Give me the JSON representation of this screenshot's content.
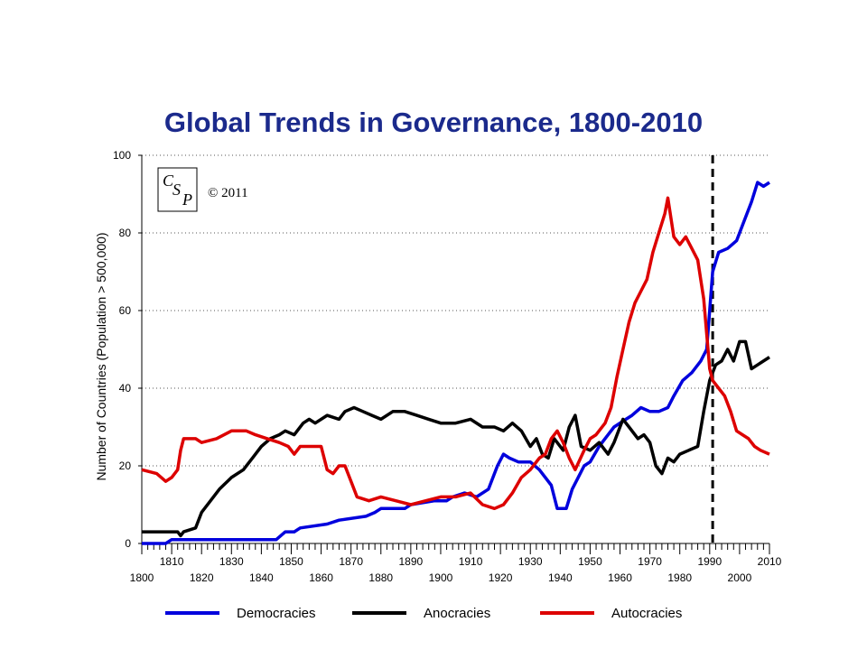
{
  "chart_data": {
    "type": "line",
    "title": "Global Trends in Governance, 1800-2010",
    "ylabel": "Number of Countries (Population > 500,000)",
    "xlabel": "",
    "xlim": [
      1800,
      2010
    ],
    "ylim": [
      0,
      100
    ],
    "x_ticks": [
      1800,
      1810,
      1820,
      1830,
      1840,
      1850,
      1860,
      1870,
      1880,
      1890,
      1900,
      1910,
      1920,
      1930,
      1940,
      1950,
      1960,
      1970,
      1980,
      1990,
      2000,
      2010
    ],
    "y_ticks": [
      0,
      20,
      40,
      60,
      80,
      100
    ],
    "grid": "horizontal dotted",
    "legend_position": "bottom",
    "annotations": {
      "copyright": "© 2011",
      "logo": "CSP",
      "reference_line_year": 1991
    },
    "series": [
      {
        "name": "Democracies",
        "color": "#0000dd",
        "points": [
          [
            1800,
            0
          ],
          [
            1808,
            0
          ],
          [
            1810,
            1
          ],
          [
            1845,
            1
          ],
          [
            1848,
            3
          ],
          [
            1851,
            3
          ],
          [
            1853,
            4
          ],
          [
            1862,
            5
          ],
          [
            1866,
            6
          ],
          [
            1875,
            7
          ],
          [
            1878,
            8
          ],
          [
            1880,
            9
          ],
          [
            1888,
            9
          ],
          [
            1890,
            10
          ],
          [
            1898,
            11
          ],
          [
            1902,
            11
          ],
          [
            1904,
            12
          ],
          [
            1908,
            13
          ],
          [
            1912,
            12
          ],
          [
            1916,
            14
          ],
          [
            1919,
            20
          ],
          [
            1921,
            23
          ],
          [
            1923,
            22
          ],
          [
            1926,
            21
          ],
          [
            1930,
            21
          ],
          [
            1933,
            19
          ],
          [
            1937,
            15
          ],
          [
            1939,
            9
          ],
          [
            1942,
            9
          ],
          [
            1944,
            14
          ],
          [
            1946,
            17
          ],
          [
            1948,
            20
          ],
          [
            1950,
            21
          ],
          [
            1953,
            25
          ],
          [
            1956,
            28
          ],
          [
            1958,
            30
          ],
          [
            1962,
            32
          ],
          [
            1964,
            33
          ],
          [
            1967,
            35
          ],
          [
            1970,
            34
          ],
          [
            1973,
            34
          ],
          [
            1976,
            35
          ],
          [
            1978,
            38
          ],
          [
            1981,
            42
          ],
          [
            1984,
            44
          ],
          [
            1987,
            47
          ],
          [
            1989,
            50
          ],
          [
            1990,
            60
          ],
          [
            1991,
            70
          ],
          [
            1993,
            75
          ],
          [
            1996,
            76
          ],
          [
            1999,
            78
          ],
          [
            2001,
            82
          ],
          [
            2004,
            88
          ],
          [
            2006,
            93
          ],
          [
            2008,
            92
          ],
          [
            2010,
            93
          ]
        ]
      },
      {
        "name": "Anocracies",
        "color": "#000000",
        "points": [
          [
            1800,
            3
          ],
          [
            1812,
            3
          ],
          [
            1813,
            2
          ],
          [
            1814,
            3
          ],
          [
            1818,
            4
          ],
          [
            1820,
            8
          ],
          [
            1823,
            11
          ],
          [
            1826,
            14
          ],
          [
            1830,
            17
          ],
          [
            1834,
            19
          ],
          [
            1837,
            22
          ],
          [
            1840,
            25
          ],
          [
            1843,
            27
          ],
          [
            1846,
            28
          ],
          [
            1848,
            29
          ],
          [
            1851,
            28
          ],
          [
            1854,
            31
          ],
          [
            1856,
            32
          ],
          [
            1858,
            31
          ],
          [
            1862,
            33
          ],
          [
            1866,
            32
          ],
          [
            1868,
            34
          ],
          [
            1871,
            35
          ],
          [
            1874,
            34
          ],
          [
            1877,
            33
          ],
          [
            1880,
            32
          ],
          [
            1884,
            34
          ],
          [
            1888,
            34
          ],
          [
            1892,
            33
          ],
          [
            1896,
            32
          ],
          [
            1900,
            31
          ],
          [
            1905,
            31
          ],
          [
            1910,
            32
          ],
          [
            1914,
            30
          ],
          [
            1918,
            30
          ],
          [
            1921,
            29
          ],
          [
            1924,
            31
          ],
          [
            1927,
            29
          ],
          [
            1930,
            25
          ],
          [
            1932,
            27
          ],
          [
            1934,
            23
          ],
          [
            1936,
            22
          ],
          [
            1938,
            27
          ],
          [
            1941,
            24
          ],
          [
            1943,
            30
          ],
          [
            1945,
            33
          ],
          [
            1947,
            25
          ],
          [
            1950,
            24
          ],
          [
            1953,
            26
          ],
          [
            1956,
            23
          ],
          [
            1958,
            26
          ],
          [
            1961,
            32
          ],
          [
            1963,
            30
          ],
          [
            1966,
            27
          ],
          [
            1968,
            28
          ],
          [
            1970,
            26
          ],
          [
            1972,
            20
          ],
          [
            1974,
            18
          ],
          [
            1976,
            22
          ],
          [
            1978,
            21
          ],
          [
            1980,
            23
          ],
          [
            1983,
            24
          ],
          [
            1986,
            25
          ],
          [
            1988,
            34
          ],
          [
            1990,
            42
          ],
          [
            1992,
            46
          ],
          [
            1994,
            47
          ],
          [
            1996,
            50
          ],
          [
            1998,
            47
          ],
          [
            2000,
            52
          ],
          [
            2002,
            52
          ],
          [
            2004,
            45
          ],
          [
            2006,
            46
          ],
          [
            2008,
            47
          ],
          [
            2010,
            48
          ]
        ]
      },
      {
        "name": "Autocracies",
        "color": "#dd0000",
        "points": [
          [
            1800,
            19
          ],
          [
            1805,
            18
          ],
          [
            1808,
            16
          ],
          [
            1810,
            17
          ],
          [
            1812,
            19
          ],
          [
            1813,
            24
          ],
          [
            1814,
            27
          ],
          [
            1818,
            27
          ],
          [
            1820,
            26
          ],
          [
            1825,
            27
          ],
          [
            1830,
            29
          ],
          [
            1835,
            29
          ],
          [
            1838,
            28
          ],
          [
            1842,
            27
          ],
          [
            1846,
            26
          ],
          [
            1849,
            25
          ],
          [
            1851,
            23
          ],
          [
            1853,
            25
          ],
          [
            1856,
            25
          ],
          [
            1860,
            25
          ],
          [
            1862,
            19
          ],
          [
            1864,
            18
          ],
          [
            1866,
            20
          ],
          [
            1868,
            20
          ],
          [
            1870,
            16
          ],
          [
            1872,
            12
          ],
          [
            1876,
            11
          ],
          [
            1880,
            12
          ],
          [
            1885,
            11
          ],
          [
            1890,
            10
          ],
          [
            1895,
            11
          ],
          [
            1900,
            12
          ],
          [
            1905,
            12
          ],
          [
            1910,
            13
          ],
          [
            1914,
            10
          ],
          [
            1918,
            9
          ],
          [
            1921,
            10
          ],
          [
            1924,
            13
          ],
          [
            1927,
            17
          ],
          [
            1930,
            19
          ],
          [
            1933,
            22
          ],
          [
            1935,
            23
          ],
          [
            1937,
            27
          ],
          [
            1939,
            29
          ],
          [
            1941,
            26
          ],
          [
            1943,
            22
          ],
          [
            1945,
            19
          ],
          [
            1948,
            24
          ],
          [
            1950,
            27
          ],
          [
            1952,
            28
          ],
          [
            1955,
            31
          ],
          [
            1957,
            35
          ],
          [
            1959,
            43
          ],
          [
            1961,
            50
          ],
          [
            1963,
            57
          ],
          [
            1965,
            62
          ],
          [
            1967,
            65
          ],
          [
            1969,
            68
          ],
          [
            1971,
            75
          ],
          [
            1973,
            80
          ],
          [
            1975,
            85
          ],
          [
            1976,
            89
          ],
          [
            1978,
            79
          ],
          [
            1980,
            77
          ],
          [
            1982,
            79
          ],
          [
            1984,
            76
          ],
          [
            1986,
            73
          ],
          [
            1988,
            63
          ],
          [
            1990,
            45
          ],
          [
            1991,
            42
          ],
          [
            1993,
            40
          ],
          [
            1995,
            38
          ],
          [
            1997,
            34
          ],
          [
            1999,
            29
          ],
          [
            2001,
            28
          ],
          [
            2003,
            27
          ],
          [
            2005,
            25
          ],
          [
            2007,
            24
          ],
          [
            2010,
            23
          ]
        ]
      }
    ]
  }
}
